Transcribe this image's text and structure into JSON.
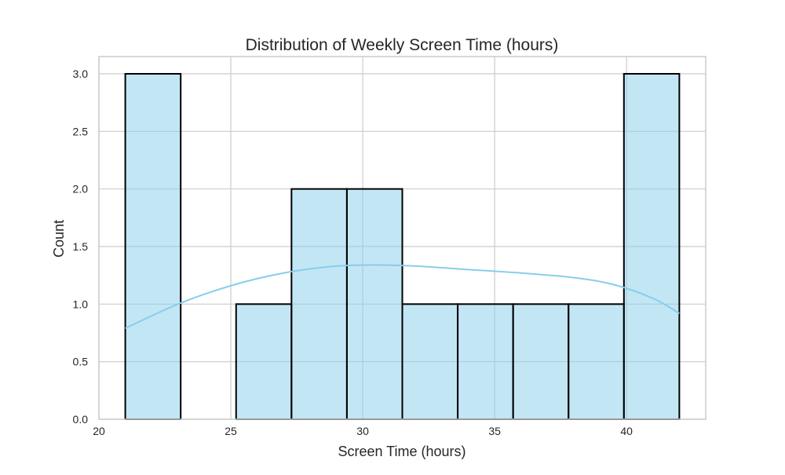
{
  "chart_data": {
    "type": "bar",
    "title": "Distribution of Weekly Screen Time (hours)",
    "xlabel": "Screen Time (hours)",
    "ylabel": "Count",
    "xlim": [
      20,
      43
    ],
    "ylim": [
      0,
      3.0
    ],
    "xticks": [
      20,
      25,
      30,
      35,
      40
    ],
    "yticks": [
      0.0,
      0.5,
      1.0,
      1.5,
      2.0,
      2.5,
      3.0
    ],
    "ytick_labels": [
      "0.0",
      "0.5",
      "1.0",
      "1.5",
      "2.0",
      "2.5",
      "3.0"
    ],
    "bin_edges": [
      21.0,
      23.1,
      25.2,
      27.3,
      29.4,
      31.5,
      33.6,
      35.7,
      37.8,
      39.9,
      42.0
    ],
    "counts": [
      3,
      0,
      1,
      2,
      2,
      1,
      1,
      1,
      1,
      3
    ],
    "kde": {
      "x": [
        21.0,
        23.0,
        25.0,
        27.0,
        29.0,
        30.5,
        32.0,
        34.0,
        36.0,
        38.0,
        39.5,
        41.0,
        42.0
      ],
      "y": [
        0.79,
        1.0,
        1.16,
        1.27,
        1.33,
        1.34,
        1.33,
        1.3,
        1.27,
        1.23,
        1.17,
        1.05,
        0.92
      ]
    },
    "grid": true,
    "colors": {
      "bar_fill": "#87ceeb",
      "bar_edge": "#000000",
      "kde_line": "#87ceeb",
      "grid": "#cccccc",
      "spine": "#cccccc"
    }
  }
}
